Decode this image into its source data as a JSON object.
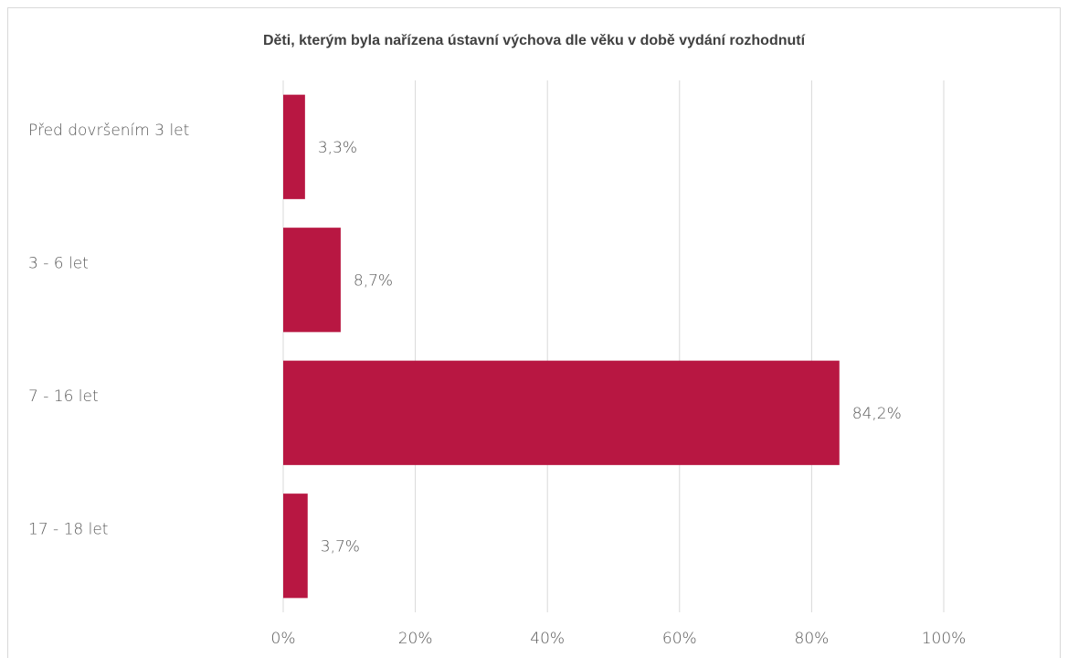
{
  "chart_data": {
    "type": "bar",
    "orientation": "horizontal",
    "title": "Děti, kterým byla nařízena ústavní výchova dle věku v době vydání rozhodnutí",
    "categories": [
      "Před dovršením 3 let",
      "3 - 6 let",
      "7 - 16 let",
      "17 - 18 let"
    ],
    "values": [
      3.3,
      8.7,
      84.2,
      3.7
    ],
    "value_labels": [
      "3,3%",
      "8,7%",
      "84,2%",
      "3,7%"
    ],
    "xlim": [
      0,
      100
    ],
    "ticks": [
      0,
      20,
      40,
      60,
      80,
      100
    ],
    "tick_labels": [
      "0%",
      "20%",
      "40%",
      "60%",
      "80%",
      "100%"
    ],
    "grid": true,
    "legend": "none",
    "bar_color": "#b81742",
    "grid_color": "#d9d9d9"
  }
}
